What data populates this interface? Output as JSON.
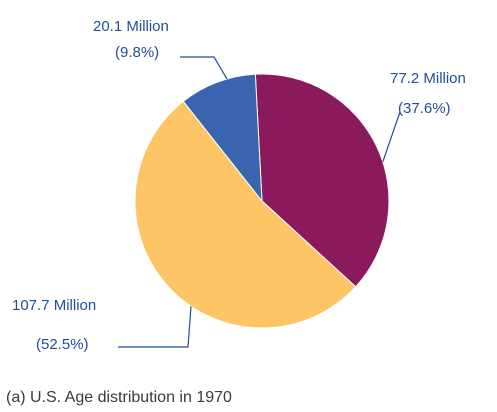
{
  "chart_data": {
    "type": "pie",
    "caption": "(a) U.S. Age distribution in 1970",
    "slices": [
      {
        "value_label": "77.2 Million",
        "percent_label": "(37.6%)",
        "value": 77.2,
        "percent": 37.6,
        "color": "#8b1a5c"
      },
      {
        "value_label": "107.7 Million",
        "percent_label": "(52.5%)",
        "value": 107.7,
        "percent": 52.5,
        "color": "#fdc566"
      },
      {
        "value_label": "20.1 Million",
        "percent_label": "(9.8%)",
        "value": 20.1,
        "percent": 9.8,
        "color": "#3a64ad"
      }
    ]
  }
}
